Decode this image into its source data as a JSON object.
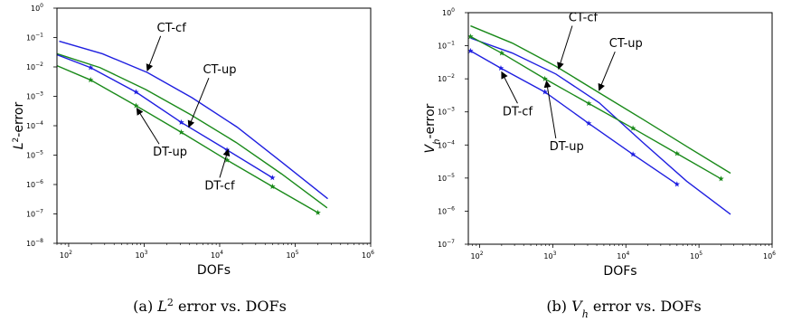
{
  "chart_data": [
    {
      "type": "line",
      "xscale": "log",
      "yscale": "log",
      "xlim": [
        70,
        1000000
      ],
      "ylim": [
        1e-08,
        1
      ],
      "xlabel": "DOFs",
      "ylabel_main": "L",
      "ylabel_sup": "2",
      "ylabel_rest": "-error",
      "caption_prefix": "(a) ",
      "caption_main": "L",
      "caption_sup": "2",
      "caption_rest": " error vs. DOFs",
      "x_ticks": [
        {
          "value": 100,
          "base": "10",
          "exp": "2"
        },
        {
          "value": 1000,
          "base": "10",
          "exp": "3"
        },
        {
          "value": 10000,
          "base": "10",
          "exp": "4"
        },
        {
          "value": 100000,
          "base": "10",
          "exp": "5"
        },
        {
          "value": 1000000,
          "base": "10",
          "exp": "6"
        }
      ],
      "y_ticks": [
        {
          "value": 1e-08,
          "base": "10",
          "exp": "−8"
        },
        {
          "value": 1e-07,
          "base": "10",
          "exp": "−7"
        },
        {
          "value": 1e-06,
          "base": "10",
          "exp": "−6"
        },
        {
          "value": 1e-05,
          "base": "10",
          "exp": "−5"
        },
        {
          "value": 0.0001,
          "base": "10",
          "exp": "−4"
        },
        {
          "value": 0.001,
          "base": "10",
          "exp": "−3"
        },
        {
          "value": 0.01,
          "base": "10",
          "exp": "−2"
        },
        {
          "value": 0.1,
          "base": "10",
          "exp": "−1"
        },
        {
          "value": 1,
          "base": "10",
          "exp": "0"
        }
      ],
      "series": [
        {
          "key": "ct-cf",
          "color": "#1f1fe0",
          "marker": false,
          "points": [
            [
              75,
              0.075
            ],
            [
              280,
              0.028
            ],
            [
              1100,
              0.0065
            ],
            [
              4300,
              0.0009
            ],
            [
              17000,
              9e-05
            ],
            [
              68000,
              5.5e-06
            ],
            [
              270000,
              3.3e-07
            ]
          ]
        },
        {
          "key": "ct-up",
          "color": "#1a8a1a",
          "marker": false,
          "points": [
            [
              65,
              0.03
            ],
            [
              260,
              0.0095
            ],
            [
              1050,
              0.0017
            ],
            [
              4100,
              0.00024
            ],
            [
              16500,
              2.7e-05
            ],
            [
              66000,
              2.3e-06
            ],
            [
              265000,
              1.6e-07
            ]
          ]
        },
        {
          "key": "dt-cf",
          "color": "#1f1fe0",
          "marker": true,
          "points": [
            [
              65,
              0.028
            ],
            [
              195,
              0.0095
            ],
            [
              780,
              0.0014
            ],
            [
              3100,
              0.00013
            ],
            [
              12500,
              1.5e-05
            ],
            [
              50000,
              1.7e-06
            ]
          ]
        },
        {
          "key": "dt-up",
          "color": "#1a8a1a",
          "marker": true,
          "points": [
            [
              65,
              0.012
            ],
            [
              195,
              0.0036
            ],
            [
              780,
              0.00048
            ],
            [
              3100,
              6e-05
            ],
            [
              12500,
              6.8e-06
            ],
            [
              50000,
              8.5e-07
            ],
            [
              200000,
              1.1e-07
            ]
          ]
        }
      ],
      "annotations": [
        {
          "key": "ct-cf",
          "text": "CT-cf",
          "label_x": 2300,
          "label_y": 0.16,
          "tip_x": 1100,
          "tip_y": 0.0075,
          "anchor": "middle"
        },
        {
          "key": "ct-up",
          "text": "CT-up",
          "label_x": 10000,
          "label_y": 0.006,
          "tip_x": 3900,
          "tip_y": 9e-05,
          "anchor": "middle"
        },
        {
          "key": "dt-up",
          "text": "DT-up",
          "label_x": 2200,
          "label_y": 9.5e-06,
          "tip_x": 800,
          "tip_y": 0.00039,
          "anchor": "middle"
        },
        {
          "key": "dt-cf",
          "text": "DT-cf",
          "label_x": 10000,
          "label_y": 6.8e-07,
          "tip_x": 13000,
          "tip_y": 1.55e-05,
          "anchor": "middle"
        }
      ]
    },
    {
      "type": "line",
      "xscale": "log",
      "yscale": "log",
      "xlim": [
        70,
        1000000
      ],
      "ylim": [
        1e-07,
        1
      ],
      "xlabel": "DOFs",
      "ylabel_main": "V",
      "ylabel_sub": "h",
      "ylabel_rest": "-error",
      "caption_prefix": "(b) ",
      "caption_main": "V",
      "caption_sub": "h",
      "caption_rest": " error vs. DOFs",
      "x_ticks": [
        {
          "value": 100,
          "base": "10",
          "exp": "2"
        },
        {
          "value": 1000,
          "base": "10",
          "exp": "3"
        },
        {
          "value": 10000,
          "base": "10",
          "exp": "4"
        },
        {
          "value": 100000,
          "base": "10",
          "exp": "5"
        },
        {
          "value": 1000000,
          "base": "10",
          "exp": "6"
        }
      ],
      "y_ticks": [
        {
          "value": 1e-07,
          "base": "10",
          "exp": "−7"
        },
        {
          "value": 1e-06,
          "base": "10",
          "exp": "−6"
        },
        {
          "value": 1e-05,
          "base": "10",
          "exp": "−5"
        },
        {
          "value": 0.0001,
          "base": "10",
          "exp": "−4"
        },
        {
          "value": 0.001,
          "base": "10",
          "exp": "−3"
        },
        {
          "value": 0.01,
          "base": "10",
          "exp": "−2"
        },
        {
          "value": 0.1,
          "base": "10",
          "exp": "−1"
        },
        {
          "value": 1,
          "base": "10",
          "exp": "0"
        }
      ],
      "series": [
        {
          "key": "ct-up",
          "color": "#1a8a1a",
          "marker": false,
          "points": [
            [
              75,
              0.4
            ],
            [
              280,
              0.12
            ],
            [
              1100,
              0.024
            ],
            [
              4300,
              0.0038
            ],
            [
              17000,
              0.0006
            ],
            [
              68000,
              9e-05
            ],
            [
              270000,
              1.4e-05
            ]
          ]
        },
        {
          "key": "ct-cf",
          "color": "#1f1fe0",
          "marker": false,
          "points": [
            [
              75,
              0.17
            ],
            [
              280,
              0.06
            ],
            [
              1100,
              0.014
            ],
            [
              4300,
              0.0019
            ],
            [
              17000,
              0.00012
            ],
            [
              68000,
              8e-06
            ],
            [
              270000,
              8e-07
            ]
          ]
        },
        {
          "key": "dt-up",
          "color": "#1a8a1a",
          "marker": true,
          "points": [
            [
              75,
              0.19
            ],
            [
              200,
              0.06
            ],
            [
              780,
              0.01
            ],
            [
              3100,
              0.0018
            ],
            [
              12500,
              0.00032
            ],
            [
              50000,
              5.5e-05
            ],
            [
              200000,
              9.5e-06
            ]
          ]
        },
        {
          "key": "dt-cf",
          "color": "#1f1fe0",
          "marker": true,
          "points": [
            [
              75,
              0.07
            ],
            [
              195,
              0.021
            ],
            [
              780,
              0.004
            ],
            [
              3100,
              0.00045
            ],
            [
              12500,
              5.2e-05
            ],
            [
              50000,
              6.5e-06
            ]
          ]
        }
      ],
      "annotations": [
        {
          "key": "ct-cf",
          "text": "CT-cf",
          "label_x": 2600,
          "label_y": 0.55,
          "tip_x": 1200,
          "tip_y": 0.02,
          "anchor": "middle"
        },
        {
          "key": "ct-up",
          "text": "CT-up",
          "label_x": 10000,
          "label_y": 0.09,
          "tip_x": 4300,
          "tip_y": 0.0045,
          "anchor": "middle"
        },
        {
          "key": "dt-cf",
          "text": "DT-cf",
          "label_x": 330,
          "label_y": 0.0008,
          "tip_x": 200,
          "tip_y": 0.016,
          "anchor": "middle"
        },
        {
          "key": "dt-up",
          "text": "DT-up",
          "label_x": 1550,
          "label_y": 7e-05,
          "tip_x": 820,
          "tip_y": 0.0085,
          "anchor": "middle"
        }
      ]
    }
  ]
}
